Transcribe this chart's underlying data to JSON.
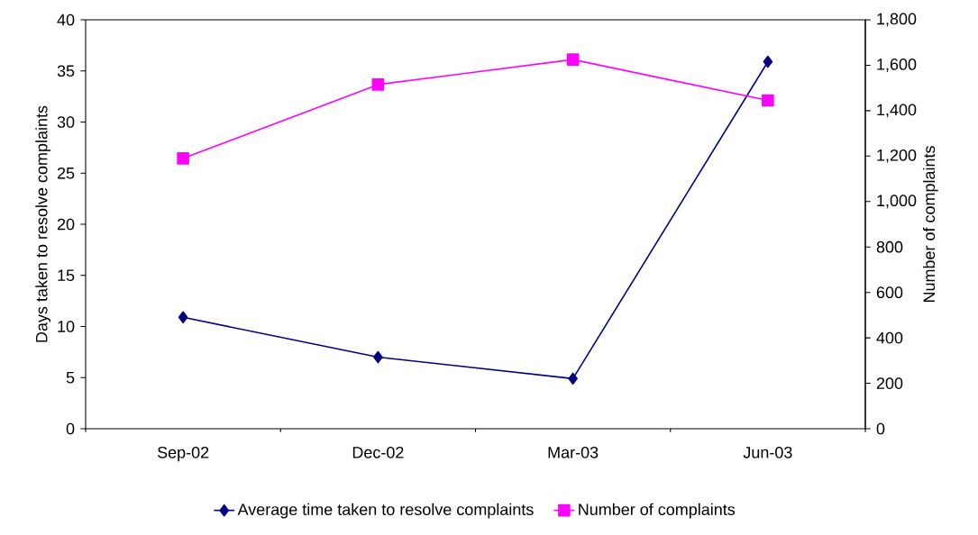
{
  "chart_data": {
    "type": "line",
    "categories": [
      "Sep-02",
      "Dec-02",
      "Mar-03",
      "Jun-03"
    ],
    "ylabel": "Days taken to resolve complaints",
    "y2label": "Number of complaints",
    "ylim": [
      0,
      40
    ],
    "yticks": [
      0,
      5,
      10,
      15,
      20,
      25,
      30,
      35,
      40
    ],
    "y2lim": [
      0,
      1800
    ],
    "y2ticks": [
      0,
      200,
      400,
      600,
      800,
      {
        "value": 1000,
        "label": "1,000"
      },
      {
        "value": 1200,
        "label": "1,200"
      },
      {
        "value": 1400,
        "label": "1,400"
      },
      {
        "value": 1600,
        "label": "1,600"
      },
      {
        "value": 1800,
        "label": "1,800"
      }
    ],
    "legend": "bottom",
    "grid": false,
    "series": [
      {
        "name": "Average time taken to resolve complaints",
        "color": "#000080",
        "marker": "diamond",
        "values": [
          10.9,
          7.0,
          4.9,
          35.9
        ]
      },
      {
        "name": "Number of complaints",
        "color": "#ff00ff",
        "marker": "square",
        "axis": "y2",
        "values": [
          1190,
          1515,
          1625,
          1445
        ]
      }
    ]
  }
}
